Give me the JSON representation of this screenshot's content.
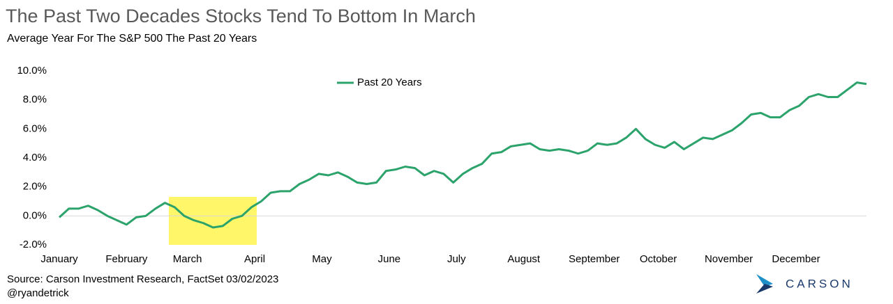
{
  "chart_data": {
    "type": "line",
    "title": "The Past Two Decades Stocks Tend To Bottom In March",
    "subtitle": "Average Year For The S&P 500 The Past 20 Years",
    "source": "Source: Carson Investment Research, FactSet 03/02/2023",
    "handle": "@ryandetrick",
    "brand": "CARSON",
    "x": [
      0,
      3,
      6,
      9,
      12,
      15,
      18,
      21,
      24,
      27,
      30,
      33,
      36,
      39,
      42,
      45,
      48,
      51,
      54,
      57,
      60,
      63,
      66,
      69,
      72,
      75,
      78,
      81,
      84,
      87,
      90,
      93,
      96,
      99,
      102,
      105,
      108,
      111,
      114,
      117,
      120,
      123,
      126,
      129,
      132,
      135,
      138,
      141,
      144,
      147,
      150,
      153,
      156,
      159,
      162,
      165,
      168,
      171,
      174,
      177,
      180,
      183,
      186,
      189,
      192,
      195,
      198,
      201,
      204,
      207,
      210,
      213,
      216,
      219,
      222,
      225,
      228,
      231,
      234,
      237,
      240,
      243,
      246,
      249,
      252
    ],
    "series": [
      {
        "name": "Past 20 Years",
        "color": "#2ba36b",
        "values": [
          -0.1,
          0.5,
          0.5,
          0.7,
          0.4,
          0.0,
          -0.3,
          -0.6,
          -0.1,
          0.0,
          0.5,
          0.9,
          0.6,
          0.0,
          -0.3,
          -0.5,
          -0.8,
          -0.7,
          -0.2,
          0.0,
          0.6,
          1.0,
          1.6,
          1.7,
          1.7,
          2.2,
          2.5,
          2.9,
          2.8,
          3.0,
          2.7,
          2.3,
          2.2,
          2.3,
          3.1,
          3.2,
          3.4,
          3.3,
          2.8,
          3.1,
          2.9,
          2.3,
          2.9,
          3.3,
          3.6,
          4.3,
          4.4,
          4.8,
          4.9,
          5.0,
          4.6,
          4.5,
          4.6,
          4.5,
          4.3,
          4.5,
          5.0,
          4.9,
          5.0,
          5.4,
          6.0,
          5.3,
          4.9,
          4.7,
          5.1,
          4.6,
          5.0,
          5.4,
          5.3,
          5.6,
          5.9,
          6.4,
          7.0,
          7.1,
          6.8,
          6.8,
          7.3,
          7.6,
          8.2,
          8.4,
          8.2,
          8.2,
          8.7,
          9.2,
          9.1
        ]
      }
    ],
    "xlim": [
      0,
      252
    ],
    "xticks": [
      {
        "value": 0,
        "label": "January"
      },
      {
        "value": 21,
        "label": "February"
      },
      {
        "value": 40,
        "label": "March"
      },
      {
        "value": 61,
        "label": "April"
      },
      {
        "value": 82,
        "label": "May"
      },
      {
        "value": 103,
        "label": "June"
      },
      {
        "value": 124,
        "label": "July"
      },
      {
        "value": 145,
        "label": "August"
      },
      {
        "value": 167,
        "label": "September"
      },
      {
        "value": 187,
        "label": "October"
      },
      {
        "value": 209,
        "label": "November"
      },
      {
        "value": 230,
        "label": "December"
      }
    ],
    "ylim": [
      -2,
      10
    ],
    "yticks": [
      {
        "value": -2,
        "label": "-2.0%"
      },
      {
        "value": 0,
        "label": "0.0%"
      },
      {
        "value": 2,
        "label": "2.0%"
      },
      {
        "value": 4,
        "label": "4.0%"
      },
      {
        "value": 6,
        "label": "6.0%"
      },
      {
        "value": 8,
        "label": "8.0%"
      },
      {
        "value": 10,
        "label": "10.0%"
      }
    ],
    "legend": "top"
  }
}
